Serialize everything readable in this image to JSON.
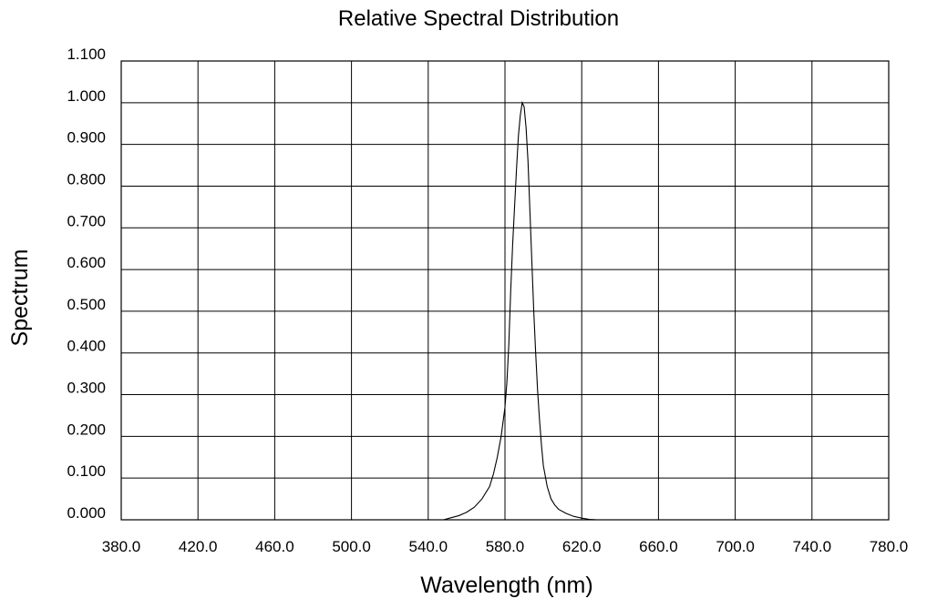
{
  "chart_data": {
    "type": "line",
    "title": "Relative Spectral Distribution",
    "xlabel": "Wavelength (nm)",
    "ylabel": "Spectrum",
    "xlim": [
      380,
      780
    ],
    "ylim": [
      0,
      1.1
    ],
    "grid": true,
    "x_ticks": [
      380,
      420,
      460,
      500,
      540,
      580,
      620,
      660,
      700,
      740,
      780
    ],
    "x_tick_labels": [
      "380.0",
      "420.0",
      "460.0",
      "500.0",
      "540.0",
      "580.0",
      "620.0",
      "660.0",
      "700.0",
      "740.0",
      "780.0"
    ],
    "y_ticks": [
      0,
      0.1,
      0.2,
      0.3,
      0.4,
      0.5,
      0.6,
      0.7,
      0.8,
      0.9,
      1.0,
      1.1
    ],
    "y_tick_labels": [
      "0.000",
      "0.100",
      "0.200",
      "0.300",
      "0.400",
      "0.500",
      "0.600",
      "0.700",
      "0.800",
      "0.900",
      "1.000",
      "1.100"
    ],
    "series": [
      {
        "x": [
          548,
          552,
          556,
          560,
          564,
          568,
          572,
          574,
          576,
          578,
          580,
          581,
          582,
          583,
          584,
          585,
          586,
          587,
          588,
          589,
          590,
          591,
          592,
          593,
          594,
          595,
          596,
          597,
          598,
          599,
          600,
          602,
          604,
          606,
          608,
          612,
          616,
          620,
          624,
          628
        ],
        "y": [
          0.0,
          0.005,
          0.01,
          0.018,
          0.03,
          0.05,
          0.08,
          0.11,
          0.15,
          0.2,
          0.27,
          0.33,
          0.42,
          0.55,
          0.66,
          0.75,
          0.84,
          0.92,
          0.97,
          1.0,
          0.99,
          0.94,
          0.86,
          0.74,
          0.62,
          0.5,
          0.4,
          0.31,
          0.24,
          0.18,
          0.13,
          0.08,
          0.05,
          0.035,
          0.025,
          0.015,
          0.008,
          0.004,
          0.001,
          0.0
        ]
      }
    ]
  }
}
